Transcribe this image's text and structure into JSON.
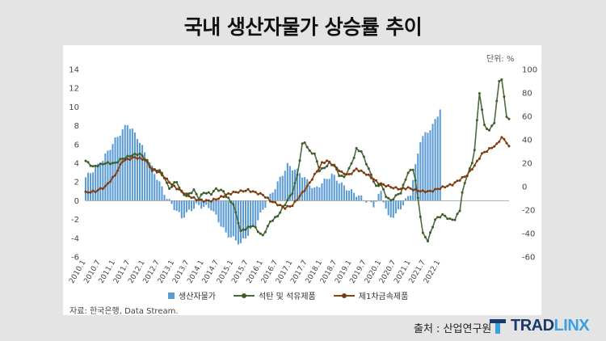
{
  "page": {
    "title": "국내 생산자물가 상승률 추이",
    "credit": "출처 : 산업연구원"
  },
  "brand": {
    "part1": "TRAD",
    "part2": "LINX"
  },
  "chart_data": {
    "type": "bar",
    "unit_label": "단위: %",
    "source": "자료: 한국은행, Data Stream.",
    "y_left": {
      "min": -6,
      "max": 14,
      "ticks": [
        -6,
        -4,
        -2,
        0,
        2,
        4,
        6,
        8,
        10,
        12,
        14
      ]
    },
    "y_right": {
      "min": -60,
      "max": 100,
      "ticks": [
        -60,
        -40,
        -20,
        0,
        20,
        40,
        60,
        80,
        100
      ]
    },
    "x_tick_labels": [
      "2010.1",
      "2010.7",
      "2011.1",
      "2011.7",
      "2012.1",
      "2012.7",
      "2013.1",
      "2013.7",
      "2014.1",
      "2014.7",
      "2015.1",
      "2015.7",
      "2016.1",
      "2016.7",
      "2017.1",
      "2017.7",
      "2018.1",
      "2018.7",
      "2019.1",
      "2019.7",
      "2020.1",
      "2020.7",
      "2021.1",
      "2021.7",
      "2022.1"
    ],
    "series": [
      {
        "name": "생산자물가",
        "kind": "bar",
        "axis": "left",
        "color": "#5b9bd5",
        "knots": [
          [
            0,
            2.5
          ],
          [
            6,
            4.0
          ],
          [
            12,
            6.5
          ],
          [
            17,
            8.2
          ],
          [
            21,
            6.8
          ],
          [
            27,
            3.5
          ],
          [
            33,
            0.3
          ],
          [
            39,
            -1.8
          ],
          [
            45,
            -0.5
          ],
          [
            51,
            -0.8
          ],
          [
            57,
            -3.5
          ],
          [
            63,
            -4.6
          ],
          [
            69,
            -2.5
          ],
          [
            75,
            0.5
          ],
          [
            82,
            3.8
          ],
          [
            87,
            3.0
          ],
          [
            93,
            1.2
          ],
          [
            100,
            2.8
          ],
          [
            105,
            1.5
          ],
          [
            111,
            0.5
          ],
          [
            117,
            -0.5
          ],
          [
            120,
            1.0
          ],
          [
            123,
            -1.8
          ],
          [
            126,
            -1.5
          ],
          [
            132,
            0.8
          ],
          [
            136,
            6.5
          ],
          [
            141,
            8.0
          ],
          [
            144,
            9.8
          ],
          [
            147,
            9.0
          ]
        ]
      },
      {
        "name": "석탄 및 석유제품",
        "kind": "line",
        "axis": "right",
        "color": "#4a6b3a",
        "marker": "#3d5c2c",
        "knots": [
          [
            0,
            22
          ],
          [
            3,
            17
          ],
          [
            8,
            20
          ],
          [
            12,
            20
          ],
          [
            14,
            23
          ],
          [
            19,
            27
          ],
          [
            22,
            28
          ],
          [
            25,
            22
          ],
          [
            27,
            14
          ],
          [
            30,
            14
          ],
          [
            32,
            8
          ],
          [
            34,
            -2
          ],
          [
            36,
            3
          ],
          [
            37,
            4
          ],
          [
            39,
            -5
          ],
          [
            41,
            -8
          ],
          [
            44,
            -3
          ],
          [
            46,
            -10
          ],
          [
            48,
            -5
          ],
          [
            51,
            -6
          ],
          [
            53,
            -2
          ],
          [
            56,
            -4
          ],
          [
            57,
            -8
          ],
          [
            60,
            -15
          ],
          [
            63,
            -38
          ],
          [
            65,
            -36
          ],
          [
            68,
            -33
          ],
          [
            70,
            -38
          ],
          [
            72,
            -42
          ],
          [
            75,
            -30
          ],
          [
            78,
            -25
          ],
          [
            81,
            -15
          ],
          [
            84,
            -5
          ],
          [
            86,
            10
          ],
          [
            88,
            36
          ],
          [
            89,
            38
          ],
          [
            91,
            30
          ],
          [
            93,
            28
          ],
          [
            95,
            14
          ],
          [
            97,
            16
          ],
          [
            99,
            20
          ],
          [
            101,
            18
          ],
          [
            103,
            10
          ],
          [
            105,
            8
          ],
          [
            107,
            15
          ],
          [
            109,
            25
          ],
          [
            110,
            32
          ],
          [
            112,
            30
          ],
          [
            114,
            20
          ],
          [
            116,
            10
          ],
          [
            118,
            0
          ],
          [
            120,
            2
          ],
          [
            122,
            -8
          ],
          [
            124,
            -12
          ],
          [
            126,
            -8
          ],
          [
            128,
            -5
          ],
          [
            131,
            12
          ],
          [
            133,
            15
          ],
          [
            134,
            5
          ],
          [
            137,
            -40
          ],
          [
            139,
            -46
          ],
          [
            142,
            -28
          ],
          [
            145,
            -24
          ],
          [
            148,
            -28
          ],
          [
            150,
            -28
          ],
          [
            152,
            -20
          ],
          [
            153,
            -5
          ],
          [
            155,
            10
          ],
          [
            157,
            20
          ],
          [
            158,
            32
          ],
          [
            160,
            80
          ],
          [
            162,
            52
          ],
          [
            164,
            48
          ],
          [
            166,
            55
          ],
          [
            168,
            90
          ],
          [
            169,
            92
          ],
          [
            171,
            60
          ],
          [
            172,
            58
          ]
        ]
      },
      {
        "name": "제1차금속제품",
        "kind": "line",
        "axis": "right",
        "color": "#8b4513",
        "marker": "#7a3b10",
        "knots": [
          [
            0,
            -5
          ],
          [
            4,
            -4
          ],
          [
            8,
            0
          ],
          [
            12,
            10
          ],
          [
            15,
            22
          ],
          [
            20,
            25
          ],
          [
            24,
            23
          ],
          [
            27,
            15
          ],
          [
            30,
            12
          ],
          [
            33,
            6
          ],
          [
            36,
            0
          ],
          [
            39,
            -4
          ],
          [
            42,
            -8
          ],
          [
            45,
            -11
          ],
          [
            48,
            -12
          ],
          [
            51,
            -12
          ],
          [
            54,
            -10
          ],
          [
            57,
            -7
          ],
          [
            60,
            -5
          ],
          [
            63,
            -4
          ],
          [
            66,
            -3
          ],
          [
            69,
            -5
          ],
          [
            72,
            -7
          ],
          [
            75,
            -12
          ],
          [
            78,
            -15
          ],
          [
            81,
            -18
          ],
          [
            84,
            -16
          ],
          [
            87,
            -8
          ],
          [
            90,
            0
          ],
          [
            93,
            10
          ],
          [
            96,
            20
          ],
          [
            98,
            22
          ],
          [
            101,
            18
          ],
          [
            104,
            12
          ],
          [
            107,
            10
          ],
          [
            110,
            15
          ],
          [
            113,
            12
          ],
          [
            116,
            8
          ],
          [
            119,
            3
          ],
          [
            122,
            1
          ],
          [
            125,
            -1
          ],
          [
            128,
            -2
          ],
          [
            131,
            -1
          ],
          [
            134,
            -3
          ],
          [
            137,
            -4
          ],
          [
            140,
            -4
          ],
          [
            143,
            -2
          ],
          [
            146,
            0
          ],
          [
            149,
            2
          ],
          [
            152,
            6
          ],
          [
            155,
            10
          ],
          [
            158,
            18
          ],
          [
            161,
            28
          ],
          [
            164,
            32
          ],
          [
            167,
            36
          ],
          [
            169,
            42
          ],
          [
            171,
            38
          ],
          [
            172,
            34
          ]
        ]
      }
    ]
  }
}
